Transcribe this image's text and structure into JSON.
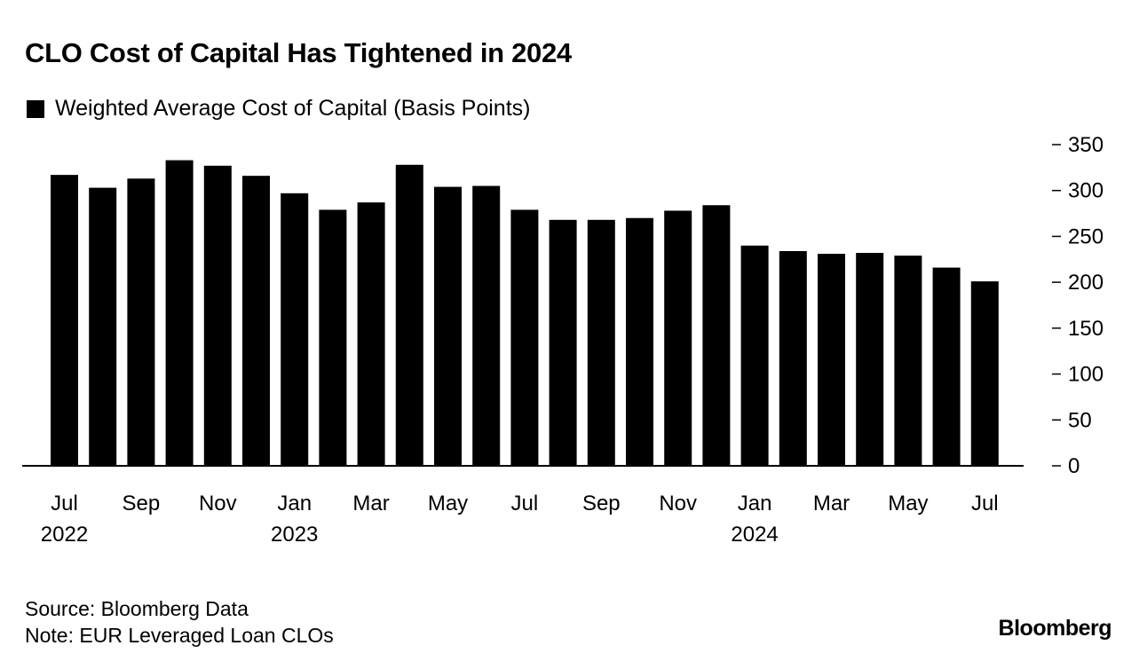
{
  "chart_data": {
    "type": "bar",
    "title": "CLO Cost of Capital Has Tightened in 2024",
    "legend": [
      "Weighted Average Cost of Capital (Basis Points)"
    ],
    "legend_placement": "top-left",
    "categories": [
      "Jul 2022",
      "Aug 2022",
      "Sep 2022",
      "Oct 2022",
      "Nov 2022",
      "Dec 2022",
      "Jan 2023",
      "Feb 2023",
      "Mar 2023",
      "Apr 2023",
      "May 2023",
      "Jun 2023",
      "Jul 2023",
      "Aug 2023",
      "Sep 2023",
      "Oct 2023",
      "Nov 2023",
      "Dec 2023",
      "Jan 2024",
      "Feb 2024",
      "Mar 2024",
      "Apr 2024",
      "May 2024",
      "Jun 2024",
      "Jul 2024"
    ],
    "values": [
      317,
      303,
      313,
      333,
      327,
      316,
      297,
      279,
      287,
      328,
      304,
      305,
      279,
      268,
      268,
      270,
      278,
      284,
      240,
      234,
      231,
      232,
      229,
      216,
      201
    ],
    "ylim": [
      0,
      350
    ],
    "yticks": [
      "350",
      "300",
      "250",
      "200",
      "150",
      "100",
      "50",
      "0"
    ],
    "ytick_values": [
      350,
      300,
      250,
      200,
      150,
      100,
      50,
      0
    ],
    "xtick_labels": [
      {
        "index": 0,
        "month": "Jul",
        "year": "2022"
      },
      {
        "index": 2,
        "month": "Sep",
        "year": ""
      },
      {
        "index": 4,
        "month": "Nov",
        "year": ""
      },
      {
        "index": 6,
        "month": "Jan",
        "year": "2023"
      },
      {
        "index": 8,
        "month": "Mar",
        "year": ""
      },
      {
        "index": 10,
        "month": "May",
        "year": ""
      },
      {
        "index": 12,
        "month": "Jul",
        "year": ""
      },
      {
        "index": 14,
        "month": "Sep",
        "year": ""
      },
      {
        "index": 16,
        "month": "Nov",
        "year": ""
      },
      {
        "index": 18,
        "month": "Jan",
        "year": "2024"
      },
      {
        "index": 20,
        "month": "Mar",
        "year": ""
      },
      {
        "index": 22,
        "month": "May",
        "year": ""
      },
      {
        "index": 24,
        "month": "Jul",
        "year": ""
      }
    ],
    "xlabel": "",
    "ylabel": "",
    "grid": false,
    "bar_color": "#000000"
  },
  "source": "Source: Bloomberg Data",
  "note": "Note: EUR Leveraged Loan CLOs",
  "logo": "Bloomberg"
}
